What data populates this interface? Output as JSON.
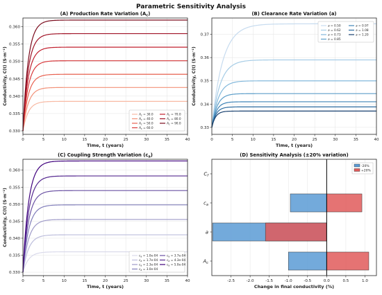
{
  "figure_title": "Parametric Sensitivity Analysis",
  "chart_data": [
    {
      "id": "A",
      "type": "line",
      "title": "(A) Production Rate Variation (A",
      "title_sub": "c",
      "title_close": ")",
      "xlabel": "Time, t (years)",
      "ylabel": "Conductivity, C(t) (S·m⁻¹)",
      "xlim": [
        0,
        40
      ],
      "ylim": [
        0.329,
        0.3625
      ],
      "xticks": [
        0,
        5,
        10,
        15,
        20,
        25,
        30,
        35,
        40
      ],
      "yticks": [
        0.33,
        0.335,
        0.34,
        0.345,
        0.35,
        0.355,
        0.36
      ],
      "y_start": 0.33,
      "rise_tau": 1.3,
      "legend_position": "lower-right",
      "legend_symbol": "A",
      "legend_sub": "c",
      "series": [
        {
          "name": "30.0",
          "final": 0.3385,
          "color": "#f8b9a3"
        },
        {
          "name": "40.0",
          "final": 0.3425,
          "color": "#f29178"
        },
        {
          "name": "50.0",
          "final": 0.3463,
          "color": "#e8604f"
        },
        {
          "name": "60.0",
          "final": 0.3502,
          "color": "#d8373a"
        },
        {
          "name": "70.0",
          "final": 0.3541,
          "color": "#c11f2d"
        },
        {
          "name": "80.0",
          "final": 0.358,
          "color": "#9f1024"
        },
        {
          "name": "90.0",
          "final": 0.3619,
          "color": "#7a0a1c"
        }
      ]
    },
    {
      "id": "B",
      "type": "line",
      "title": "(B) Clearance Rate Variation (a)",
      "xlabel": "Time, t (years)",
      "ylabel": "Conductivity, C(t) (S·m⁻¹)",
      "xlim": [
        0,
        40
      ],
      "ylim": [
        0.327,
        0.377
      ],
      "xticks": [
        0,
        5,
        10,
        15,
        20,
        25,
        30,
        35,
        40
      ],
      "yticks": [
        0.33,
        0.34,
        0.35,
        0.36,
        0.37
      ],
      "y_start": 0.33,
      "rise_tau_base": 1.2,
      "legend_position": "upper-right",
      "legend_symbol": "a",
      "series": [
        {
          "name": "0.50",
          "final": 0.3745,
          "tau": 2.6,
          "color": "#c6dbef"
        },
        {
          "name": "0.62",
          "final": 0.359,
          "tau": 2.0,
          "color": "#a5cce6"
        },
        {
          "name": "0.73",
          "final": 0.35,
          "tau": 1.6,
          "color": "#82b8db"
        },
        {
          "name": "0.85",
          "final": 0.3445,
          "tau": 1.3,
          "color": "#5c9ec9"
        },
        {
          "name": "0.97",
          "final": 0.341,
          "tau": 1.1,
          "color": "#3f84b7"
        },
        {
          "name": "1.08",
          "final": 0.3388,
          "tau": 1.0,
          "color": "#2a6a9f"
        },
        {
          "name": "1.20",
          "final": 0.337,
          "tau": 0.9,
          "color": "#163f6e"
        }
      ]
    },
    {
      "id": "C",
      "type": "line",
      "title": "(C) Coupling Strength Variation (c",
      "title_sub": "a",
      "title_close": ")",
      "xlabel": "Time, t (years)",
      "ylabel": "Conductivity, C(t) (S·m⁻¹)",
      "xlim": [
        0,
        40
      ],
      "ylim": [
        0.329,
        0.3632
      ],
      "xticks": [
        0,
        5,
        10,
        15,
        20,
        25,
        30,
        35,
        40
      ],
      "yticks": [
        0.33,
        0.335,
        0.34,
        0.345,
        0.35,
        0.355,
        0.36
      ],
      "y_start": 0.33,
      "rise_tau": 1.4,
      "legend_position": "lower-right",
      "legend_symbol": "c",
      "legend_sub": "a",
      "series": [
        {
          "name": "1.0e-04",
          "final": 0.336,
          "color": "#dadaeb"
        },
        {
          "name": "1.7e-04",
          "final": 0.341,
          "color": "#bcbddc"
        },
        {
          "name": "2.3e-04",
          "final": 0.3455,
          "color": "#9e9ac8"
        },
        {
          "name": "3.0e-04",
          "final": 0.3498,
          "color": "#807dba"
        },
        {
          "name": "3.7e-04",
          "final": 0.354,
          "color": "#6a51a3"
        },
        {
          "name": "4.3e-04",
          "final": 0.3583,
          "color": "#54278f"
        },
        {
          "name": "5.0e-04",
          "final": 0.3627,
          "color": "#3f007d"
        }
      ]
    },
    {
      "id": "D",
      "type": "bar",
      "orientation": "horizontal",
      "title": "(D) Sensitivity Analysis (±20% variation)",
      "xlabel": "Change in final conductivity (%)",
      "xlim": [
        -3.0,
        1.3
      ],
      "xticks": [
        -2.5,
        -2.0,
        -1.5,
        -1.0,
        -0.5,
        0.0,
        0.5,
        1.0
      ],
      "categories": [
        "C",
        "c",
        "a",
        "A"
      ],
      "category_subs": [
        "f",
        "a",
        "",
        "c"
      ],
      "legend_position": "upper-right",
      "series": [
        {
          "name": "-20%",
          "values": [
            0.0,
            -0.95,
            -2.98,
            -1.0
          ],
          "color": "#5b9bd5"
        },
        {
          "name": "+20%",
          "values": [
            0.0,
            0.92,
            -1.6,
            1.1
          ],
          "color": "#e05a5a"
        }
      ]
    }
  ]
}
